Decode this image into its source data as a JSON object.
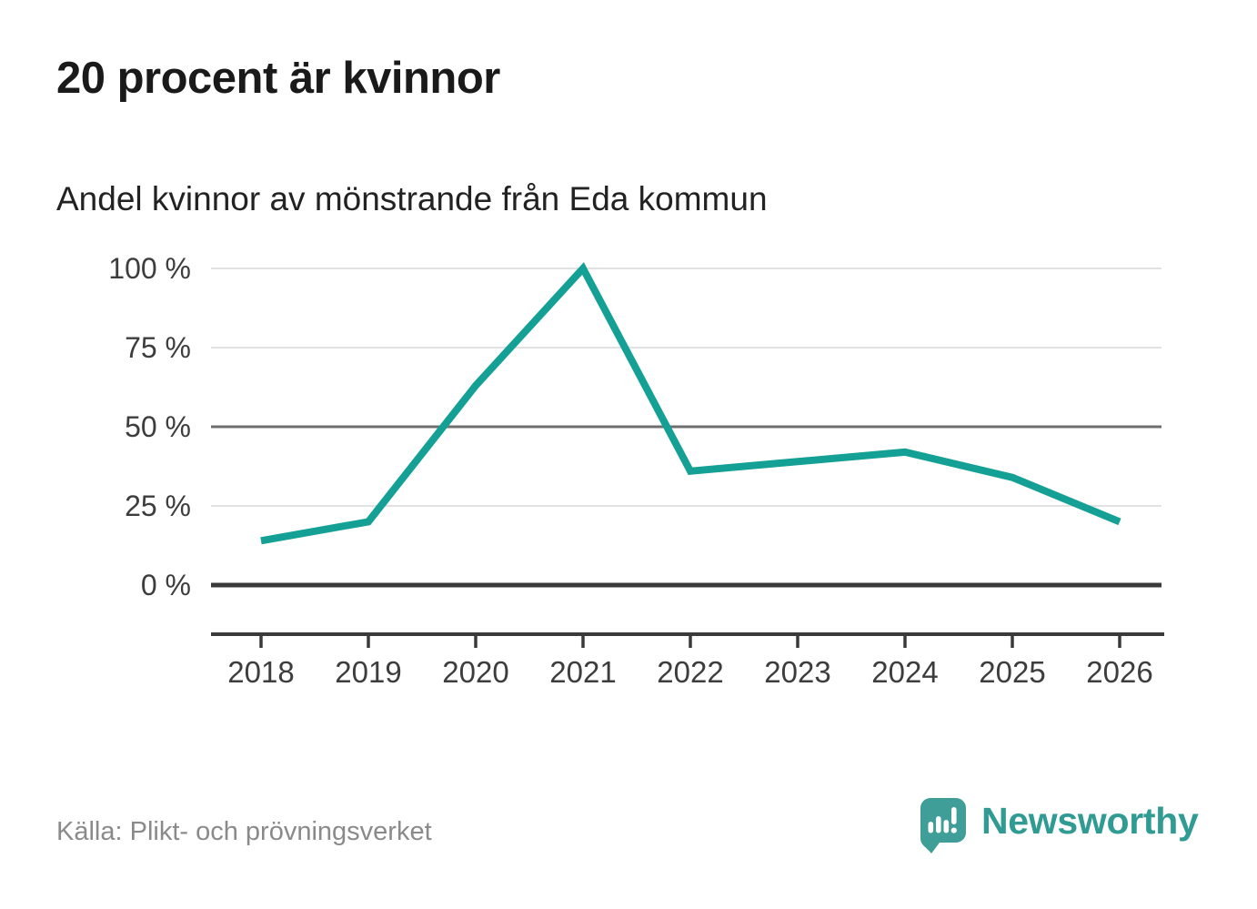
{
  "header": {
    "title": "20 procent är kvinnor",
    "subtitle": "Andel kvinnor av mönstrande från Eda kommun"
  },
  "footer": {
    "source": "Källa: Plikt- och prövningsverket",
    "brand": "Newsworthy"
  },
  "colors": {
    "line": "#14a094",
    "grid_light": "#e2e2e2",
    "grid_mid": "#6e6e6e",
    "axis": "#3a3a3a",
    "title_text": "#1a1a1a",
    "subtitle_text": "#222222",
    "tick_text": "#3d3d3d",
    "source_text": "#8a8a8a",
    "brand_icon": "#3f9e97",
    "brand_text": "#2f9b92"
  },
  "chart_data": {
    "type": "line",
    "title": "20 procent är kvinnor",
    "subtitle": "Andel kvinnor av mönstrande från Eda kommun",
    "categories": [
      "2018",
      "2019",
      "2020",
      "2021",
      "2022",
      "2023",
      "2024",
      "2025",
      "2026"
    ],
    "series": [
      {
        "name": "Andel kvinnor av mönstrande från Eda kommun",
        "values": [
          14,
          20,
          63,
          100,
          36,
          39,
          42,
          34,
          20
        ],
        "unit": "%"
      }
    ],
    "xlabel": "",
    "ylabel": "",
    "ylim": [
      0,
      100
    ],
    "y_ticks": [
      0,
      25,
      50,
      75,
      100
    ],
    "y_tick_labels": [
      "0 %",
      "25 %",
      "50 %",
      "75 %",
      "100 %"
    ],
    "grid": true,
    "legend": false,
    "line_color": "#14a094"
  }
}
